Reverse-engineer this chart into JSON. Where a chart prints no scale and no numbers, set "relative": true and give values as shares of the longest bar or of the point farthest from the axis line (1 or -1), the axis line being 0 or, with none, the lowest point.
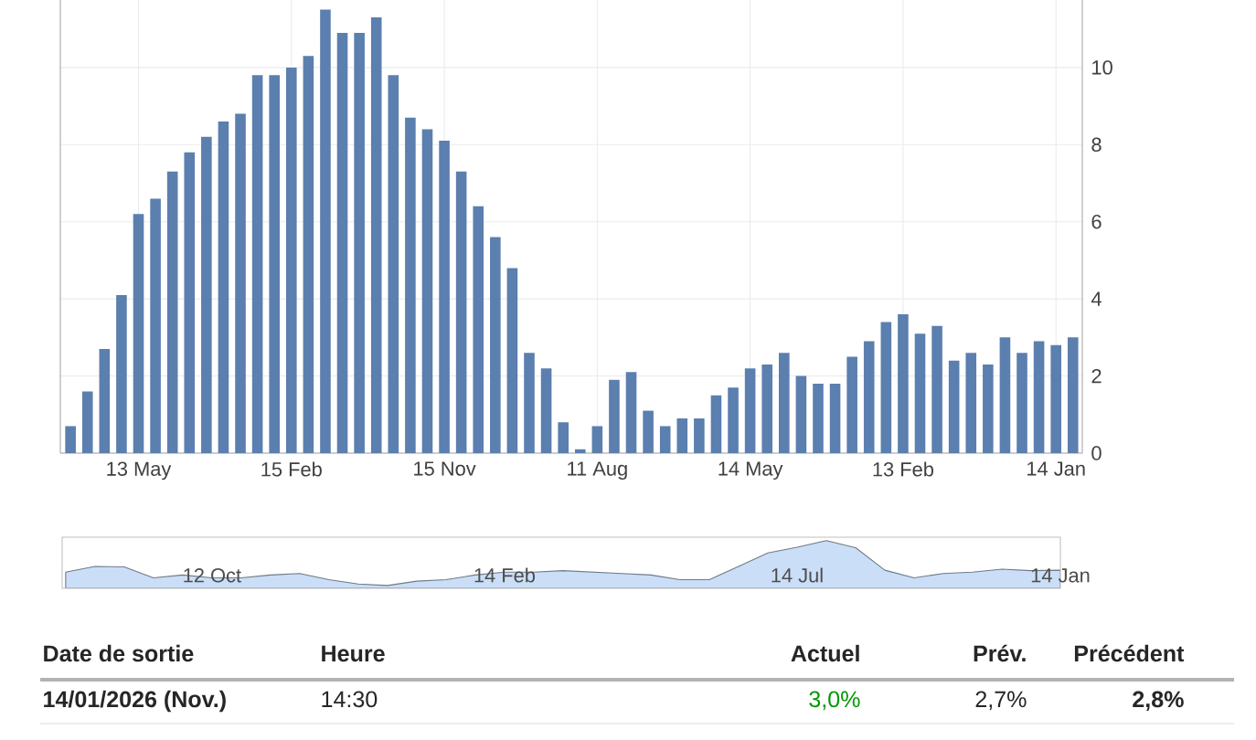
{
  "chart_data": [
    {
      "type": "bar",
      "color": "#5b7fae",
      "grid": true,
      "ylim": [
        0,
        11.75
      ],
      "yticks": [
        0,
        2,
        4,
        6,
        8,
        10
      ],
      "categories": [
        null,
        null,
        null,
        null,
        "13 May",
        null,
        null,
        null,
        null,
        null,
        null,
        null,
        null,
        "15 Feb",
        null,
        null,
        null,
        null,
        null,
        null,
        null,
        null,
        "15 Nov",
        null,
        null,
        null,
        null,
        null,
        null,
        null,
        null,
        "11 Aug",
        null,
        null,
        null,
        null,
        null,
        null,
        null,
        null,
        "14 May",
        null,
        null,
        null,
        null,
        null,
        null,
        null,
        null,
        "13 Feb",
        null,
        null,
        null,
        null,
        null,
        null,
        null,
        null,
        "14 Jan",
        null
      ],
      "values": [
        0.7,
        1.6,
        2.7,
        4.1,
        6.2,
        6.6,
        7.3,
        7.8,
        8.2,
        8.6,
        8.8,
        9.8,
        9.8,
        10.0,
        10.3,
        11.5,
        10.9,
        10.9,
        11.3,
        9.8,
        8.7,
        8.4,
        8.1,
        7.3,
        6.4,
        5.6,
        4.8,
        2.6,
        2.2,
        0.8,
        0.1,
        0.7,
        1.9,
        2.1,
        1.1,
        0.7,
        0.9,
        0.9,
        1.5,
        1.7,
        2.2,
        2.3,
        2.6,
        2.0,
        1.8,
        1.8,
        2.5,
        2.9,
        3.4,
        3.6,
        3.1,
        3.3,
        2.4,
        2.6,
        2.3,
        3.0,
        2.6,
        2.9,
        2.8,
        3.0
      ]
    },
    {
      "type": "area",
      "color": "#cadef7",
      "relative": true,
      "categories": [
        null,
        null,
        null,
        null,
        null,
        "12 Oct",
        null,
        null,
        null,
        null,
        null,
        null,
        null,
        null,
        null,
        "14 Feb",
        null,
        null,
        null,
        null,
        null,
        null,
        null,
        null,
        null,
        "14 Jul",
        null,
        null,
        null,
        null,
        null,
        null,
        null,
        null,
        "14 Jan"
      ],
      "values": [
        0.34,
        0.46,
        0.45,
        0.22,
        0.28,
        0.22,
        0.22,
        0.28,
        0.31,
        0.18,
        0.09,
        0.06,
        0.15,
        0.18,
        0.28,
        0.34,
        0.34,
        0.37,
        0.34,
        0.31,
        0.28,
        0.18,
        0.18,
        0.46,
        0.74,
        0.86,
        1,
        0.85,
        0.38,
        0.22,
        0.31,
        0.34,
        0.4,
        0.37,
        0.38
      ]
    },
    {
      "type": "other",
      "annotations": [
        "Date de sortie",
        "Heure",
        "Actuel",
        "Prév.",
        "Précédent",
        "14/01/2026 (Nov.)",
        "14:30",
        "3,0%",
        "2,7%",
        "2,8%"
      ]
    }
  ]
}
